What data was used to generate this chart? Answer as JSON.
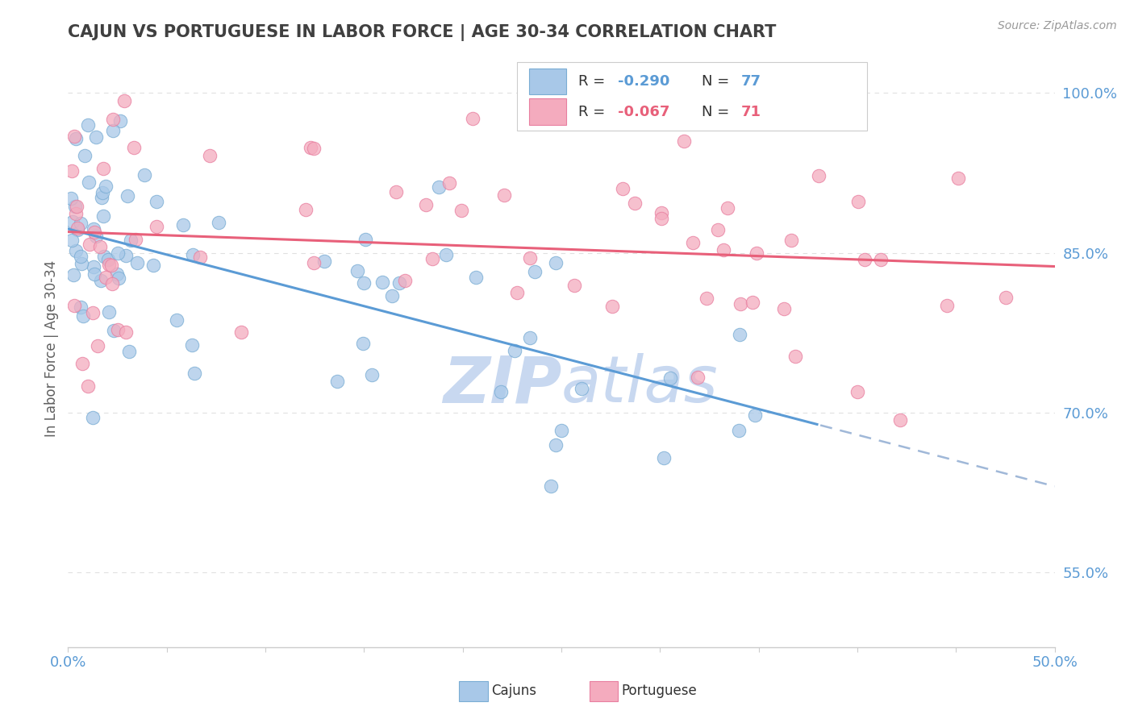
{
  "title": "CAJUN VS PORTUGUESE IN LABOR FORCE | AGE 30-34 CORRELATION CHART",
  "source_text": "Source: ZipAtlas.com",
  "ylabel": "In Labor Force | Age 30-34",
  "xlim": [
    0.0,
    0.5
  ],
  "ylim": [
    0.48,
    1.04
  ],
  "yticks_right": [
    0.55,
    0.7,
    0.85,
    1.0
  ],
  "ytick_right_labels": [
    "55.0%",
    "70.0%",
    "85.0%",
    "100.0%"
  ],
  "cajun_color": "#A8C8E8",
  "portuguese_color": "#F4ABBE",
  "cajun_edge_color": "#7AADD4",
  "portuguese_edge_color": "#E87FA0",
  "cajun_line_color": "#5B9BD5",
  "portuguese_line_color": "#E8607A",
  "dashed_extension_color": "#A0B8D8",
  "background_color": "#FFFFFF",
  "grid_color": "#E0E0E0",
  "title_color": "#404040",
  "tick_label_color": "#5B9BD5",
  "watermark_color": "#C8D8F0",
  "R_cajun": -0.29,
  "N_cajun": 77,
  "R_portuguese": -0.067,
  "N_portuguese": 71
}
